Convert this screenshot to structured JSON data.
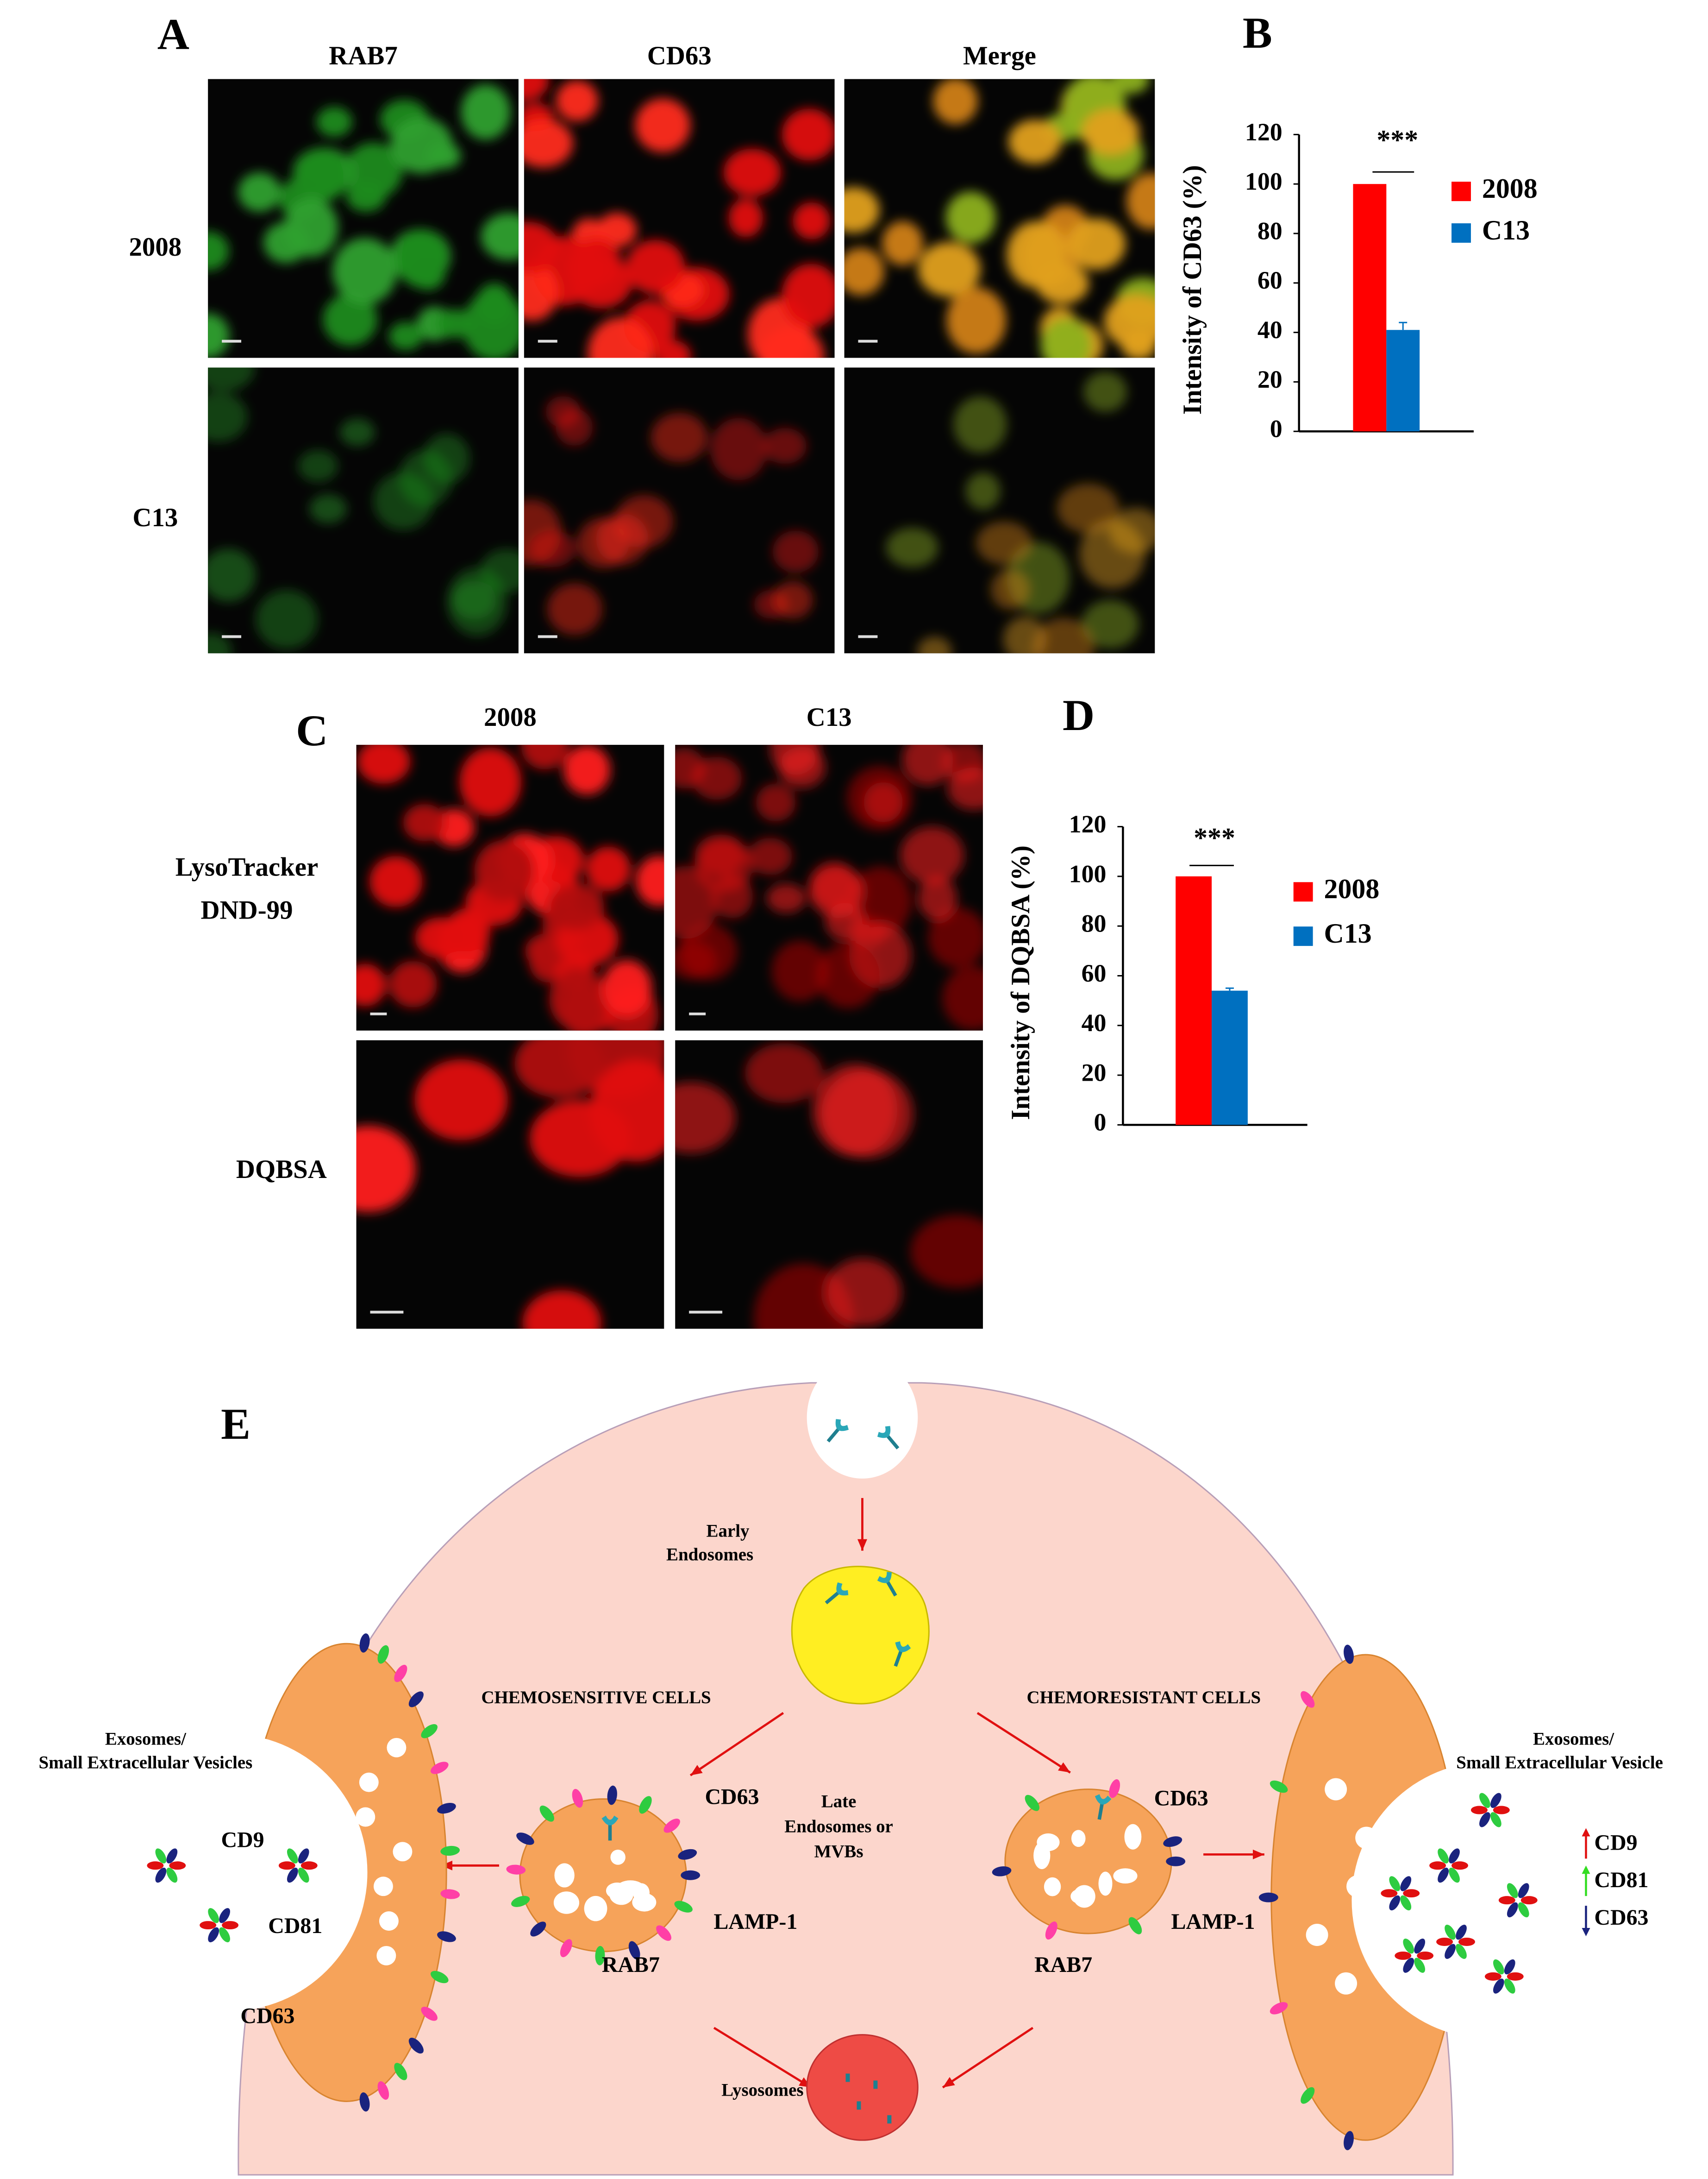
{
  "panel_a": {
    "label": "A",
    "columns": [
      "RAB7",
      "CD63",
      "Merge"
    ],
    "rows": [
      "2008",
      "C13"
    ]
  },
  "panel_c": {
    "label": "C",
    "columns": [
      "2008",
      "C13"
    ],
    "rows": [
      [
        "LysoTracker",
        "DND-99"
      ],
      [
        "DQBSA"
      ]
    ]
  },
  "chart_data": [
    {
      "type": "bar",
      "panel": "B",
      "y_label": "Intensity of CD63 (%)",
      "annotation": "***",
      "categories": [
        null
      ],
      "series": [
        {
          "name": "2008",
          "color": "#ff0000",
          "values": [
            100
          ]
        },
        {
          "name": "C13",
          "color": "#0070c0",
          "values": [
            41
          ],
          "errors": [
            3
          ]
        }
      ],
      "ylim": [
        0,
        120
      ],
      "yticks": [
        0,
        20,
        40,
        60,
        80,
        100,
        120
      ],
      "grid": false,
      "legend": "right"
    },
    {
      "type": "bar",
      "panel": "D",
      "y_label": "Intensity of DQBSA (%)",
      "annotation": "***",
      "categories": [
        null
      ],
      "series": [
        {
          "name": "2008",
          "color": "#ff0000",
          "values": [
            100
          ]
        },
        {
          "name": "C13",
          "color": "#0070c0",
          "values": [
            54
          ],
          "errors": [
            1
          ]
        }
      ],
      "ylim": [
        0,
        120
      ],
      "yticks": [
        0,
        20,
        40,
        60,
        80,
        100,
        120
      ],
      "grid": false,
      "legend": "right"
    }
  ],
  "diagram": {
    "label": "E",
    "early_endosomes": [
      "Early",
      "Endosomes"
    ],
    "chemosensitive": "CHEMOSENSITIVE CELLS",
    "chemoresistant": "CHEMORESISTANT CELLS",
    "late_endosomes": [
      "Late",
      "Endosomes or",
      "MVBs"
    ],
    "lysosomes": "Lysosomes",
    "left_exosomes": [
      "Exosomes/",
      "Small Extracellular Vesicles"
    ],
    "right_exosomes": [
      "Exosomes/",
      "Small Extracellular Vesicle"
    ],
    "left_markers": [
      "CD9",
      "CD81",
      "CD63"
    ],
    "sensitive_markers": [
      "CD63",
      "LAMP-1",
      "RAB7"
    ],
    "resistant_markers": [
      "CD63",
      "LAMP-1",
      "RAB7"
    ],
    "right_markers": [
      "CD9",
      "CD81",
      "CD63"
    ]
  }
}
